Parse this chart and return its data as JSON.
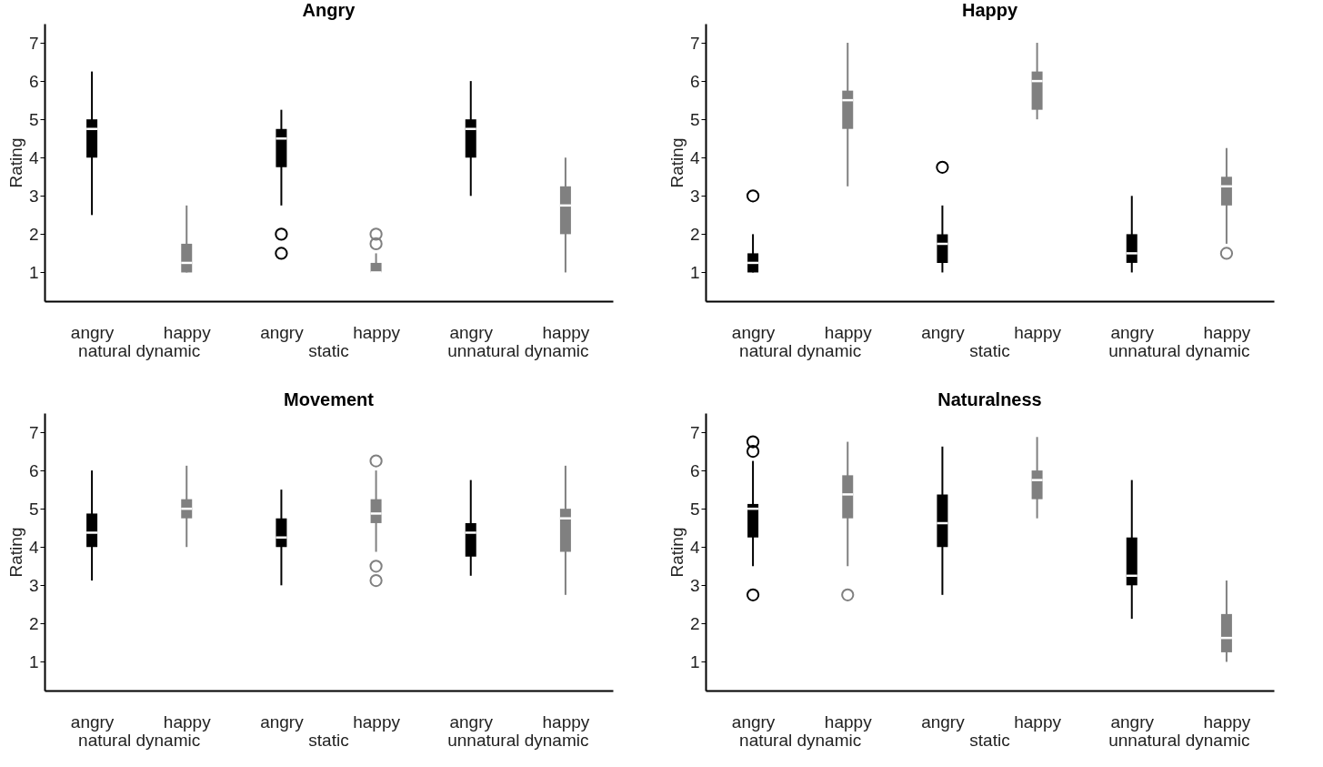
{
  "chart_data": [
    {
      "type": "box",
      "title": "Angry",
      "ylabel": "Rating",
      "categories": [
        "angry",
        "happy",
        "angry",
        "happy",
        "angry",
        "happy"
      ],
      "annotations": [
        "natural dynamic",
        "static",
        "unnatural dynamic"
      ],
      "colors": [
        "#000000",
        "#808080",
        "#000000",
        "#808080",
        "#000000",
        "#808080"
      ],
      "ylim": [
        0.25,
        7.5
      ],
      "yticks": [
        1,
        2,
        3,
        4,
        5,
        6,
        7
      ],
      "grid": false,
      "boxes": [
        {
          "low": 2.5,
          "q1": 4,
          "median": 4.75,
          "q3": 5,
          "high": 6.25
        },
        {
          "low": 1,
          "q1": 1,
          "median": 1.25,
          "q3": 1.75,
          "high": 2.75
        },
        {
          "low": 2.75,
          "q1": 3.75,
          "median": 4.5,
          "q3": 4.75,
          "high": 5.25,
          "outliers": [
            2,
            1.5
          ]
        },
        {
          "low": 1,
          "q1": 1,
          "median": 1,
          "q3": 1.25,
          "high": 1.5,
          "outliers": [
            2,
            1.75
          ]
        },
        {
          "low": 3,
          "q1": 4,
          "median": 4.75,
          "q3": 5,
          "high": 6
        },
        {
          "low": 1,
          "q1": 2,
          "median": 2.75,
          "q3": 3.25,
          "high": 4
        }
      ]
    },
    {
      "type": "box",
      "title": "Happy",
      "ylabel": "Rating",
      "categories": [
        "angry",
        "happy",
        "angry",
        "happy",
        "angry",
        "happy"
      ],
      "annotations": [
        "natural dynamic",
        "static",
        "unnatural dynamic"
      ],
      "colors": [
        "#000000",
        "#808080",
        "#000000",
        "#808080",
        "#000000",
        "#808080"
      ],
      "ylim": [
        0.25,
        7.5
      ],
      "yticks": [
        1,
        2,
        3,
        4,
        5,
        6,
        7
      ],
      "grid": false,
      "boxes": [
        {
          "low": 1,
          "q1": 1,
          "median": 1.25,
          "q3": 1.5,
          "high": 2,
          "outliers": [
            3
          ]
        },
        {
          "low": 3.25,
          "q1": 4.75,
          "median": 5.5,
          "q3": 5.75,
          "high": 7
        },
        {
          "low": 1,
          "q1": 1.25,
          "median": 1.75,
          "q3": 2,
          "high": 2.75,
          "outliers": [
            3.75
          ]
        },
        {
          "low": 5,
          "q1": 5.25,
          "median": 6,
          "q3": 6.25,
          "high": 7
        },
        {
          "low": 1,
          "q1": 1.25,
          "median": 1.5,
          "q3": 2,
          "high": 3
        },
        {
          "low": 1.75,
          "q1": 2.75,
          "median": 3.25,
          "q3": 3.5,
          "high": 4.25,
          "outliers": [
            1.5
          ]
        }
      ]
    },
    {
      "type": "box",
      "title": "Movement",
      "ylabel": "Rating",
      "categories": [
        "angry",
        "happy",
        "angry",
        "happy",
        "angry",
        "happy"
      ],
      "annotations": [
        "natural dynamic",
        "static",
        "unnatural dynamic"
      ],
      "colors": [
        "#000000",
        "#808080",
        "#000000",
        "#808080",
        "#000000",
        "#808080"
      ],
      "ylim": [
        0.25,
        7.5
      ],
      "yticks": [
        1,
        2,
        3,
        4,
        5,
        6,
        7
      ],
      "grid": false,
      "boxes": [
        {
          "low": 3.125,
          "q1": 4,
          "median": 4.375,
          "q3": 4.875,
          "high": 6
        },
        {
          "low": 4,
          "q1": 4.75,
          "median": 5,
          "q3": 5.25,
          "high": 6.125
        },
        {
          "low": 3,
          "q1": 4,
          "median": 4.25,
          "q3": 4.75,
          "high": 5.5
        },
        {
          "low": 3.875,
          "q1": 4.625,
          "median": 4.875,
          "q3": 5.25,
          "high": 6,
          "outliers": [
            6.25,
            3.5,
            3.125
          ]
        },
        {
          "low": 3.25,
          "q1": 3.75,
          "median": 4.375,
          "q3": 4.625,
          "high": 5.75
        },
        {
          "low": 2.75,
          "q1": 3.875,
          "median": 4.75,
          "q3": 5,
          "high": 6.125
        }
      ]
    },
    {
      "type": "box",
      "title": "Naturalness",
      "ylabel": "Rating",
      "categories": [
        "angry",
        "happy",
        "angry",
        "happy",
        "angry",
        "happy"
      ],
      "annotations": [
        "natural dynamic",
        "static",
        "unnatural dynamic"
      ],
      "colors": [
        "#000000",
        "#808080",
        "#000000",
        "#808080",
        "#000000",
        "#808080"
      ],
      "ylim": [
        0.25,
        7.5
      ],
      "yticks": [
        1,
        2,
        3,
        4,
        5,
        6,
        7
      ],
      "grid": false,
      "boxes": [
        {
          "low": 3.5,
          "q1": 4.25,
          "median": 5,
          "q3": 5.125,
          "high": 6.25,
          "outliers": [
            6.75,
            6.5,
            2.75
          ]
        },
        {
          "low": 3.5,
          "q1": 4.75,
          "median": 5.375,
          "q3": 5.875,
          "high": 6.75,
          "outliers": [
            2.75
          ]
        },
        {
          "low": 2.75,
          "q1": 4,
          "median": 4.625,
          "q3": 5.375,
          "high": 6.625
        },
        {
          "low": 4.75,
          "q1": 5.25,
          "median": 5.75,
          "q3": 6,
          "high": 6.875
        },
        {
          "low": 2.125,
          "q1": 3,
          "median": 3.25,
          "q3": 4.25,
          "high": 5.75
        },
        {
          "low": 1,
          "q1": 1.25,
          "median": 1.625,
          "q3": 2.25,
          "high": 3.125
        }
      ]
    }
  ]
}
